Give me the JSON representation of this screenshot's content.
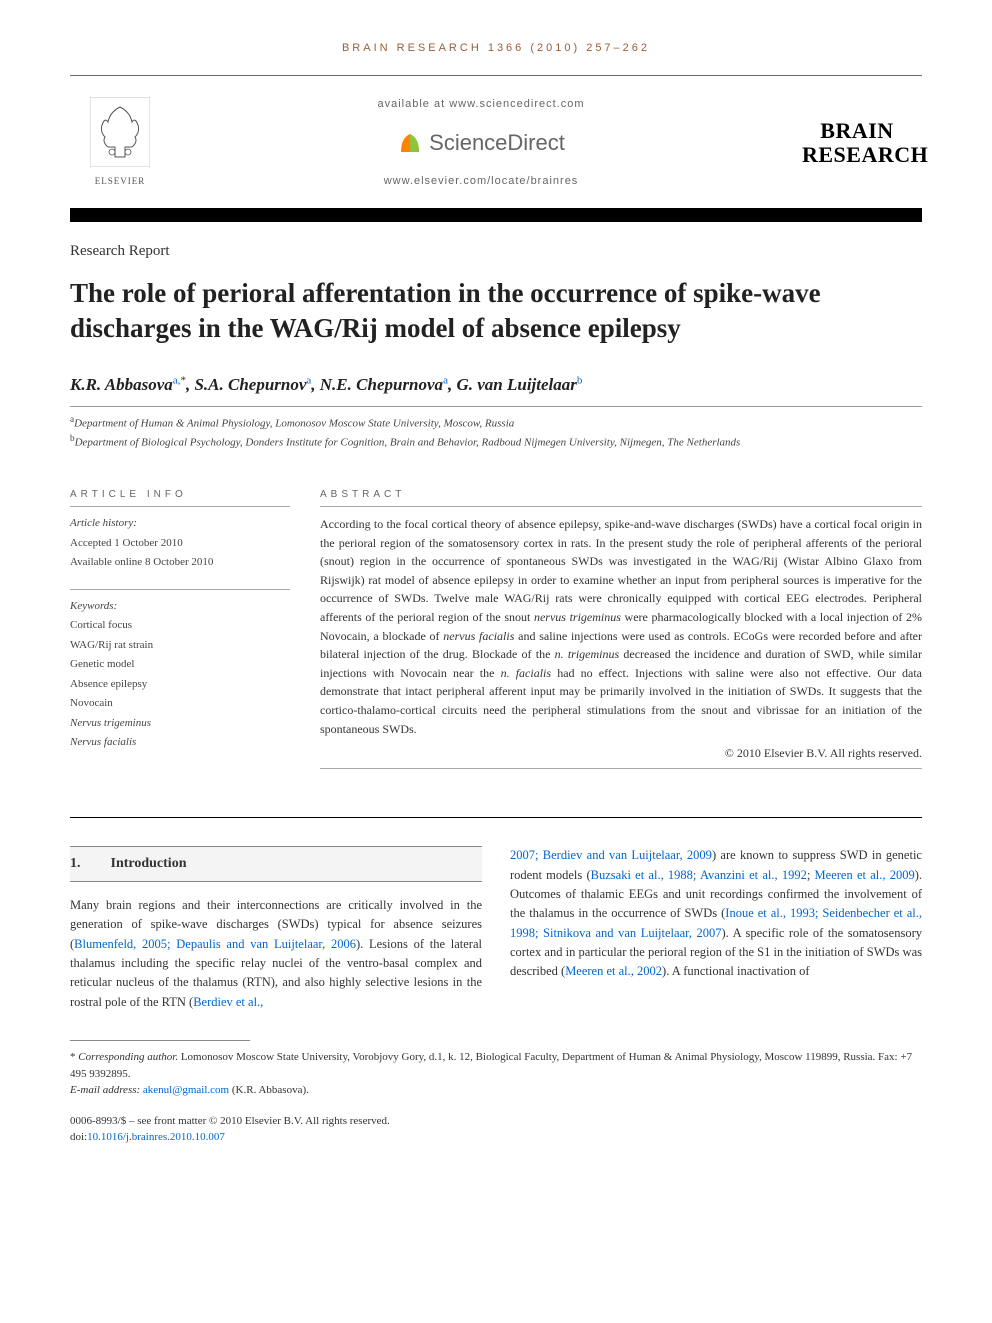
{
  "running_head": "BRAIN RESEARCH 1366 (2010) 257–262",
  "header": {
    "available_at": "available at www.sciencedirect.com",
    "sciencedirect": "ScienceDirect",
    "locate": "www.elsevier.com/locate/brainres",
    "publisher": "ELSEVIER",
    "journal_line1": "BRAIN",
    "journal_line2": "RESEARCH"
  },
  "article_type": "Research Report",
  "title": "The role of perioral afferentation in the occurrence of spike-wave discharges in the WAG/Rij model of absence epilepsy",
  "authors_html": "K.R. Abbasova<sup class='sup-link'>a,</sup><sup>*</sup>, S.A. Chepurnov<sup class='sup-link'>a</sup>, N.E. Chepurnova<sup class='sup-link'>a</sup>, G. van Luijtelaar<sup class='sup-link'>b</sup>",
  "affiliations": {
    "a": "Department of Human & Animal Physiology, Lomonosov Moscow State University, Moscow, Russia",
    "b": "Department of Biological Psychology, Donders Institute for Cognition, Brain and Behavior, Radboud Nijmegen University, Nijmegen, The Netherlands"
  },
  "info": {
    "head": "ARTICLE INFO",
    "history_label": "Article history:",
    "accepted": "Accepted 1 October 2010",
    "online": "Available online 8 October 2010",
    "keywords_label": "Keywords:",
    "keywords": [
      "Cortical focus",
      "WAG/Rij rat strain",
      "Genetic model",
      "Absence epilepsy",
      "Novocain",
      "Nervus trigeminus",
      "Nervus facialis"
    ]
  },
  "abstract": {
    "head": "ABSTRACT",
    "text": "According to the focal cortical theory of absence epilepsy, spike-and-wave discharges (SWDs) have a cortical focal origin in the perioral region of the somatosensory cortex in rats. In the present study the role of peripheral afferents of the perioral (snout) region in the occurrence of spontaneous SWDs was investigated in the WAG/Rij (Wistar Albino Glaxo from Rijswijk) rat model of absence epilepsy in order to examine whether an input from peripheral sources is imperative for the occurrence of SWDs. Twelve male WAG/Rij rats were chronically equipped with cortical EEG electrodes. Peripheral afferents of the perioral region of the snout <span class='ital'>nervus trigeminus</span> were pharmacologically blocked with a local injection of 2% Novocain, a blockade of <span class='ital'>nervus facialis</span> and saline injections were used as controls. ECoGs were recorded before and after bilateral injection of the drug. Blockade of the <span class='ital'>n. trigeminus</span> decreased the incidence and duration of SWD, while similar injections with Novocain near the <span class='ital'>n. facialis</span> had no effect. Injections with saline were also not effective. Our data demonstrate that intact peripheral afferent input may be primarily involved in the initiation of SWDs. It suggests that the cortico-thalamo-cortical circuits need the peripheral stimulations from the snout and vibrissae for an initiation of the spontaneous SWDs.",
    "copyright": "© 2010 Elsevier B.V. All rights reserved."
  },
  "section1": {
    "num": "1.",
    "title": "Introduction"
  },
  "body": {
    "col1": "Many brain regions and their interconnections are critically involved in the generation of spike-wave discharges (SWDs) typical for absence seizures (<span class='link'>Blumenfeld, 2005; Depaulis and van Luijtelaar, 2006</span>). Lesions of the lateral thalamus including the specific relay nuclei of the ventro-basal complex and reticular nucleus of the thalamus (RTN), and also highly selective lesions in the rostral pole of the RTN (<span class='link'>Berdiev et al.,</span>",
    "col2": "<span class='link'>2007; Berdiev and van Luijtelaar, 2009</span>) are known to suppress SWD in genetic rodent models (<span class='link'>Buzsaki et al., 1988; Avanzini et al., 1992</span>; <span class='link'>Meeren et al., 2009</span>). Outcomes of thalamic EEGs and unit recordings confirmed the involvement of the thalamus in the occurrence of SWDs (<span class='link'>Inoue et al., 1993; Seidenbecher et al., 1998; Sitnikova and van Luijtelaar, 2007</span>). A specific role of the somatosensory cortex and in particular the perioral region of the S1 in the initiation of SWDs was described (<span class='link'>Meeren et al., 2002</span>). A functional inactivation of"
  },
  "footnote": {
    "corr": "* <span class='ital'>Corresponding author.</span> Lomonosov Moscow State University, Vorobjovy Gory, d.1, k. 12, Biological Faculty, Department of Human & Animal Physiology, Moscow 119899, Russia. Fax: +7 495 9392895.",
    "email_label": "E-mail address:",
    "email": "akenul@gmail.com",
    "email_attr": " (K.R. Abbasova)."
  },
  "bottom": {
    "issn": "0006-8993/$ – see front matter © 2010 Elsevier B.V. All rights reserved.",
    "doi": "doi:10.1016/j.brainres.2010.10.007"
  },
  "colors": {
    "running_head": "#9a5c3a",
    "link": "#0066cc",
    "sd_orange": "#ff8200",
    "sd_green": "#8cc63f",
    "text": "#333333"
  }
}
